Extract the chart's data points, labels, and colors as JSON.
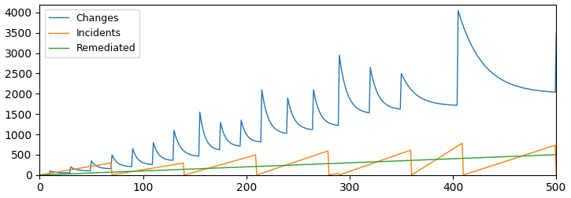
{
  "series": [
    {
      "label": "Changes",
      "color": "#1f77b4"
    },
    {
      "label": "Incidents",
      "color": "#ff7f0e"
    },
    {
      "label": "Remediated",
      "color": "#2ca02c"
    }
  ],
  "xlim": [
    0,
    500
  ],
  "ylim": [
    0,
    4200
  ],
  "yticks": [
    0,
    500,
    1000,
    1500,
    2000,
    2500,
    3000,
    3500,
    4000
  ],
  "xticks": [
    0,
    100,
    200,
    300,
    400,
    500
  ],
  "figsize": [
    7.25,
    2.52
  ],
  "dpi": 100,
  "changes_segments": [
    {
      "spike_x": 10,
      "spike_y": 100,
      "decay_to": 50
    },
    {
      "spike_x": 30,
      "spike_y": 200,
      "decay_to": 100
    },
    {
      "spike_x": 50,
      "spike_y": 350,
      "decay_to": 150
    },
    {
      "spike_x": 70,
      "spike_y": 500,
      "decay_to": 200
    },
    {
      "spike_x": 90,
      "spike_y": 650,
      "decay_to": 250
    },
    {
      "spike_x": 110,
      "spike_y": 800,
      "decay_to": 350
    },
    {
      "spike_x": 130,
      "spike_y": 1100,
      "decay_to": 450
    },
    {
      "spike_x": 155,
      "spike_y": 1550,
      "decay_to": 600
    },
    {
      "spike_x": 175,
      "spike_y": 1300,
      "decay_to": 700
    },
    {
      "spike_x": 195,
      "spike_y": 1350,
      "decay_to": 800
    },
    {
      "spike_x": 215,
      "spike_y": 2100,
      "decay_to": 1000
    },
    {
      "spike_x": 240,
      "spike_y": 1900,
      "decay_to": 1100
    },
    {
      "spike_x": 265,
      "spike_y": 2100,
      "decay_to": 1200
    },
    {
      "spike_x": 290,
      "spike_y": 2950,
      "decay_to": 1500
    },
    {
      "spike_x": 320,
      "spike_y": 2650,
      "decay_to": 1600
    },
    {
      "spike_x": 350,
      "spike_y": 2500,
      "decay_to": 1700
    },
    {
      "spike_x": 405,
      "spike_y": 4050,
      "decay_to": 2000
    },
    {
      "spike_x": 500,
      "spike_y": 3500,
      "decay_to": 3200
    }
  ],
  "incidents_cycles": [
    [
      0,
      70,
      0,
      300
    ],
    [
      70,
      140,
      0,
      300
    ],
    [
      140,
      210,
      0,
      500
    ],
    [
      210,
      280,
      0,
      600
    ],
    [
      280,
      290,
      0,
      50
    ],
    [
      290,
      360,
      0,
      620
    ],
    [
      360,
      410,
      0,
      800
    ],
    [
      410,
      500,
      0,
      740
    ]
  ],
  "remediated_end": 500
}
